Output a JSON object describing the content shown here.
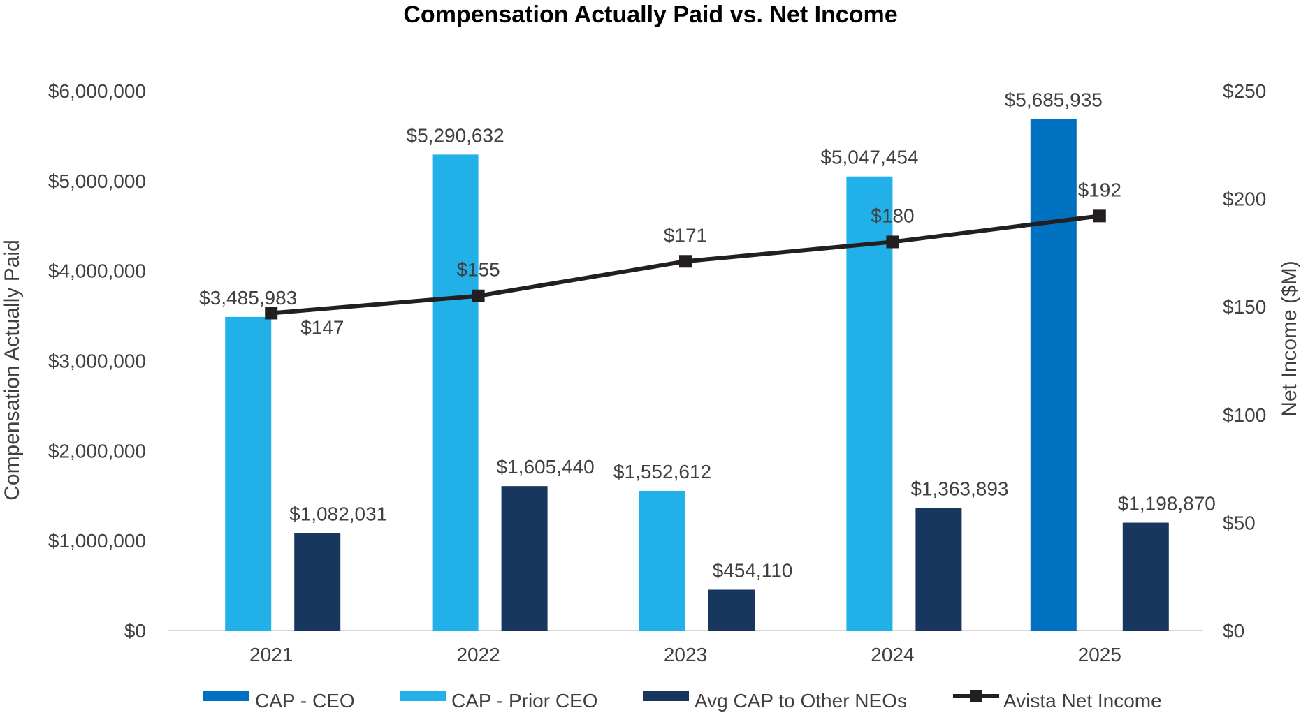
{
  "chart_data": {
    "type": "bar",
    "title": "Compensation Actually Paid vs. Net Income",
    "categories": [
      "2021",
      "2022",
      "2023",
      "2024",
      "2025"
    ],
    "xlabel": "",
    "ylabel": "Compensation Actually Paid",
    "ylabel_right": "Net Income ($M)",
    "ylim": [
      0,
      6000000
    ],
    "ylim_right": [
      0,
      250
    ],
    "yticks": [
      "$0",
      "$1,000,000",
      "$2,000,000",
      "$3,000,000",
      "$4,000,000",
      "$5,000,000",
      "$6,000,000"
    ],
    "yticks_right": [
      "$0",
      "$50",
      "$100",
      "$150",
      "$200",
      "$250"
    ],
    "grid": false,
    "legend_position": "bottom",
    "series": [
      {
        "name": "CAP - CEO",
        "type": "bar",
        "axis": "left",
        "color": "#0070C0",
        "values": [
          null,
          null,
          null,
          null,
          5685935
        ],
        "labels": [
          "",
          "",
          "",
          "",
          "$5,685,935"
        ]
      },
      {
        "name": "CAP - Prior CEO",
        "type": "bar",
        "axis": "left",
        "color": "#21B0E8",
        "values": [
          3485983,
          5290632,
          1552612,
          5047454,
          null
        ],
        "labels": [
          "$3,485,983",
          "$5,290,632",
          "$1,552,612",
          "$5,047,454",
          ""
        ]
      },
      {
        "name": "Avg CAP to Other NEOs",
        "type": "bar",
        "axis": "left",
        "color": "#17375E",
        "values": [
          1082031,
          1605440,
          454110,
          1363893,
          1198870
        ],
        "labels": [
          "$1,082,031",
          "$1,605,440",
          "$454,110",
          "$1,363,893",
          "$1,198,870"
        ]
      },
      {
        "name": "Avista Net Income",
        "type": "line",
        "axis": "right",
        "color": "#231F20",
        "values": [
          147,
          155,
          171,
          180,
          192
        ],
        "labels": [
          "$147",
          "$155",
          "$171",
          "$180",
          "$192"
        ]
      }
    ]
  }
}
